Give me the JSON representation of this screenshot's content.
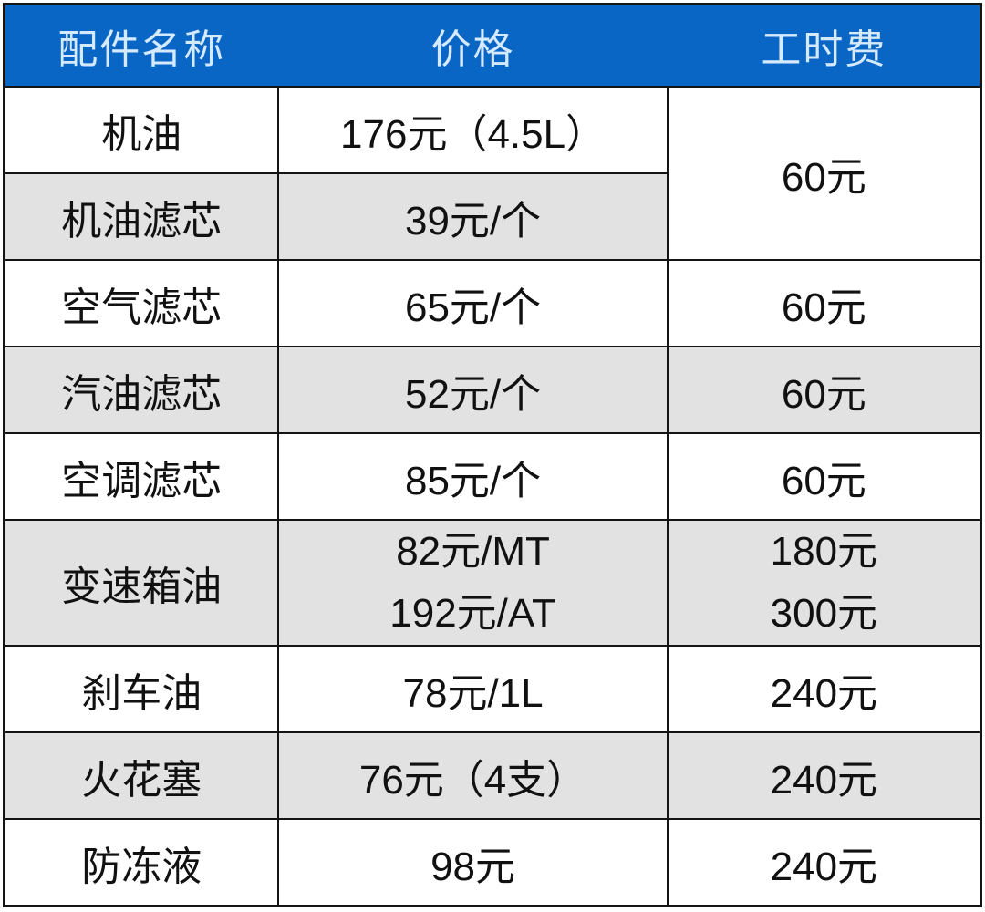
{
  "table": {
    "headers": [
      {
        "label": "配件名称"
      },
      {
        "label": "价格"
      },
      {
        "label": "工时费"
      }
    ],
    "rows": [
      {
        "name": "机油",
        "price": "176元（4.5L）",
        "labor": "60元",
        "labor_rowspan": 2,
        "shaded": false
      },
      {
        "name": "机油滤芯",
        "price": "39元/个",
        "labor": null,
        "labor_merged_above": true,
        "shaded": true
      },
      {
        "name": "空气滤芯",
        "price": "65元/个",
        "labor": "60元",
        "shaded": false
      },
      {
        "name": "汽油滤芯",
        "price": "52元/个",
        "labor": "60元",
        "shaded": true
      },
      {
        "name": "空调滤芯",
        "price": "85元/个",
        "labor": "60元",
        "shaded": false
      },
      {
        "name": "变速箱油",
        "price": [
          "82元/MT",
          "192元/AT"
        ],
        "labor": [
          "180元",
          "300元"
        ],
        "shaded": true
      },
      {
        "name": "刹车油",
        "price": "78元/1L",
        "labor": "240元",
        "shaded": false
      },
      {
        "name": "火花塞",
        "price": "76元（4支）",
        "labor": "240元",
        "shaded": true
      },
      {
        "name": "防冻液",
        "price": "98元",
        "labor": "240元",
        "shaded": false
      }
    ],
    "colors": {
      "header_bg": "#0a66c4",
      "header_text": "#d5eaff",
      "shaded_row_bg": "#e2e2e2",
      "row_bg": "#ffffff",
      "border": "#141414",
      "body_text": "#111111"
    }
  }
}
